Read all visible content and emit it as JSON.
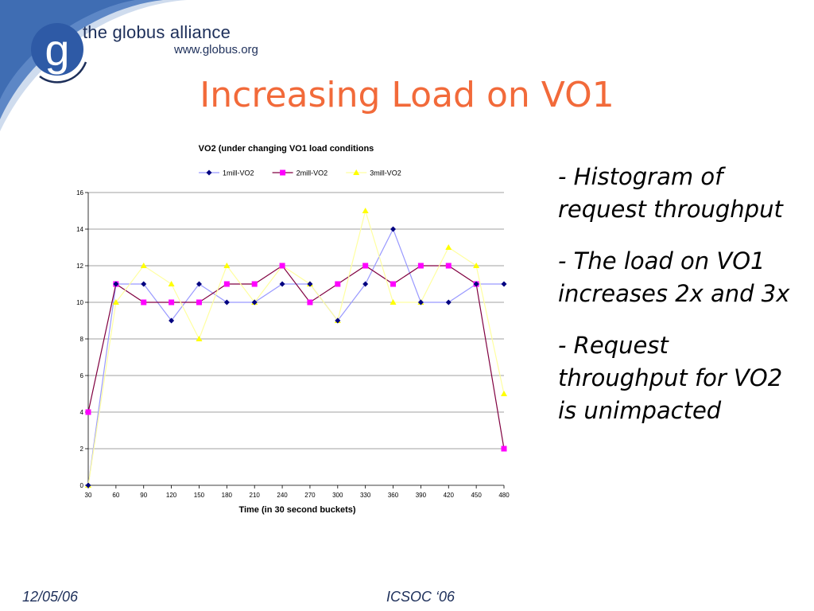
{
  "header": {
    "brand_name": "the globus alliance",
    "brand_url": "www.globus.org",
    "logo_letter": "g"
  },
  "slide": {
    "title": "Increasing Load on VO1"
  },
  "bullets": [
    "- Histogram of request throughput",
    "- The load on VO1 increases 2x and 3x",
    "- Request throughput for VO2 is unimpacted"
  ],
  "footer": {
    "date": "12/05/06",
    "conference": "ICSOC ‘06"
  },
  "chart_data": {
    "type": "line",
    "title": "VO2 (under changing VO1 load conditions",
    "xlabel": "Time (in 30 second buckets)",
    "ylabel": "",
    "ylim": [
      0,
      16
    ],
    "yticks": [
      0,
      2,
      4,
      6,
      8,
      10,
      12,
      14,
      16
    ],
    "grid": true,
    "legend_position": "top",
    "categories": [
      "30",
      "60",
      "90",
      "120",
      "150",
      "180",
      "210",
      "240",
      "270",
      "300",
      "330",
      "360",
      "390",
      "420",
      "450",
      "480"
    ],
    "series": [
      {
        "name": "1mill-VO2",
        "color": "#9999ff",
        "marker_color": "#000080",
        "marker": "diamond",
        "values": [
          0,
          11,
          11,
          9,
          11,
          10,
          10,
          11,
          11,
          9,
          11,
          14,
          10,
          10,
          11,
          11
        ]
      },
      {
        "name": "2mill-VO2",
        "color": "#800040",
        "marker_color": "#ff00ff",
        "marker": "square",
        "values": [
          4,
          11,
          10,
          10,
          10,
          11,
          11,
          12,
          10,
          11,
          12,
          11,
          12,
          12,
          11,
          2
        ]
      },
      {
        "name": "3mill-VO2",
        "color": "#ffffa0",
        "marker_color": "#ffff00",
        "marker": "triangle",
        "values": [
          0,
          10,
          12,
          11,
          8,
          12,
          10,
          12,
          11,
          9,
          15,
          10,
          10,
          13,
          12,
          5
        ]
      }
    ]
  }
}
